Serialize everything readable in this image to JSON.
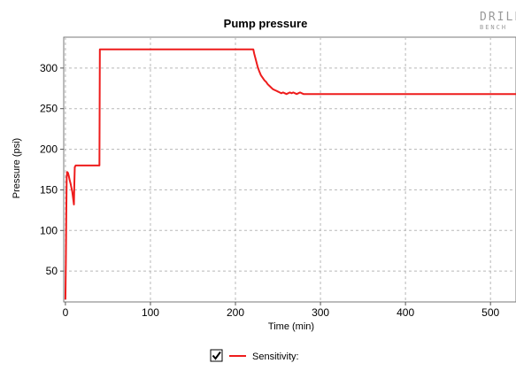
{
  "logo": {
    "line1": "DRILL",
    "line2": "BENCH"
  },
  "chart_data": {
    "type": "line",
    "title": "Pump pressure",
    "xlabel": "Time (min)",
    "ylabel": "Pressure (psi)",
    "xlim": [
      -2,
      530
    ],
    "ylim": [
      12,
      338
    ],
    "xticks": [
      0,
      100,
      200,
      300,
      400,
      500
    ],
    "yticks": [
      50,
      100,
      150,
      200,
      250,
      300
    ],
    "grid": true,
    "legend_placement": "bottom-center",
    "series": [
      {
        "name": "Sensitivity:",
        "color": "#ee1c1c",
        "x": [
          0,
          0.5,
          1,
          1.5,
          2,
          3,
          4,
          5,
          6,
          7,
          8,
          9,
          10,
          10.5,
          11,
          12,
          14,
          20,
          30,
          40,
          40.5,
          42,
          60,
          100,
          150,
          200,
          221,
          222,
          224,
          226,
          228,
          230,
          232,
          234,
          236,
          238,
          240,
          242,
          244,
          246,
          248,
          250,
          252,
          254,
          256,
          258,
          260,
          262,
          264,
          266,
          268,
          270,
          272,
          274,
          276,
          278,
          280,
          300,
          350,
          400,
          450,
          500,
          530
        ],
        "y": [
          15,
          60,
          120,
          165,
          172,
          171,
          167,
          162,
          158,
          153,
          148,
          140,
          132,
          158,
          178,
          180,
          180,
          180,
          180,
          180,
          323,
          323,
          323,
          323,
          323,
          323,
          323,
          318,
          310,
          302,
          296,
          291,
          288,
          285,
          283,
          280,
          278,
          276,
          274,
          273,
          272,
          271,
          270,
          269,
          270,
          269,
          268,
          269,
          270,
          269,
          270,
          269,
          268,
          269,
          270,
          269,
          268,
          268,
          268,
          268,
          268,
          268,
          268
        ]
      }
    ]
  }
}
